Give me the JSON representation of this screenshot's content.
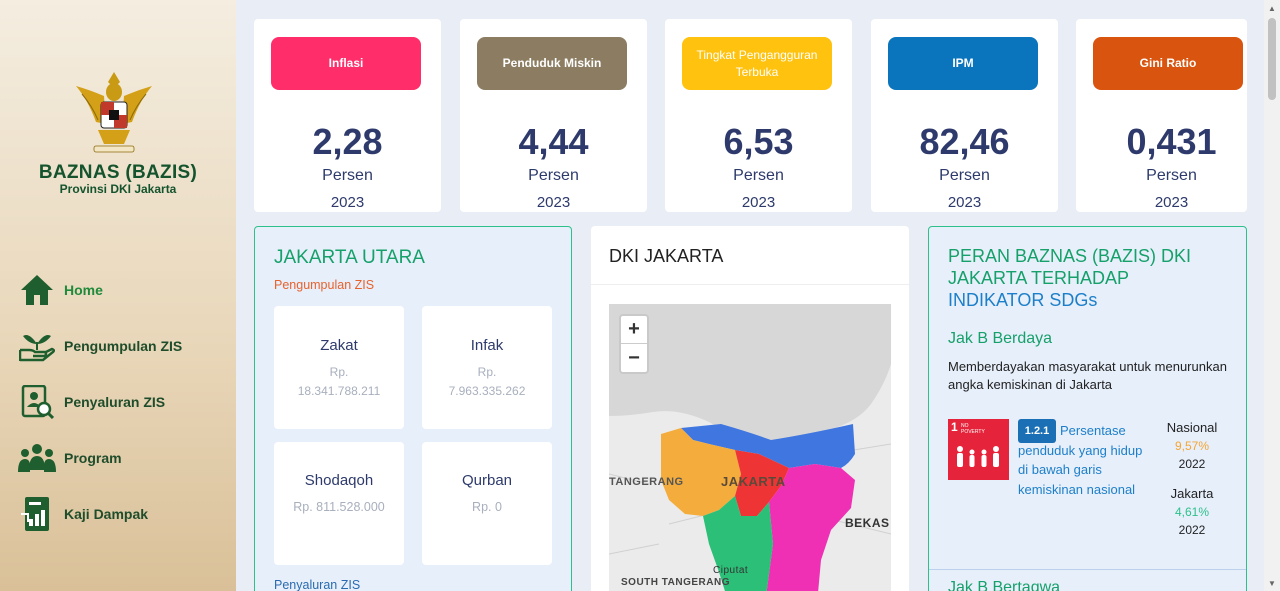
{
  "brand": {
    "name": "BAZNAS (BAZIS)",
    "subtitle": "Provinsi DKI Jakarta"
  },
  "nav": [
    {
      "label": "Home",
      "icon": "home-icon",
      "active": true
    },
    {
      "label": "Pengumpulan ZIS",
      "icon": "hand-plant-icon"
    },
    {
      "label": "Penyaluran ZIS",
      "icon": "document-search-icon"
    },
    {
      "label": "Program",
      "icon": "people-group-icon"
    },
    {
      "label": "Kaji Dampak",
      "icon": "chart-report-icon"
    }
  ],
  "stats": [
    {
      "label": "Inflasi",
      "value": "2,28",
      "unit": "Persen",
      "year": "2023",
      "color": "#ff2d6a"
    },
    {
      "label": "Penduduk Miskin",
      "value": "4,44",
      "unit": "Persen",
      "year": "2023",
      "color": "#8c7d62"
    },
    {
      "label": "Tingkat Pengangguran Terbuka",
      "value": "6,53",
      "unit": "Persen",
      "year": "2023",
      "color": "#ffc20e"
    },
    {
      "label": "IPM",
      "value": "82,46",
      "unit": "Persen",
      "year": "2023",
      "color": "#0a75bc"
    },
    {
      "label": "Gini Ratio",
      "value": "0,431",
      "unit": "Persen",
      "year": "2023",
      "color": "#d9540e"
    }
  ],
  "region": {
    "title": "JAKARTA UTARA",
    "collection_label": "Pengumpulan ZIS",
    "items": [
      {
        "name": "Zakat",
        "currency": "Rp.",
        "amount": "18.341.788.211"
      },
      {
        "name": "Infak",
        "currency": "Rp.",
        "amount": "7.963.335.262"
      },
      {
        "name": "Shodaqoh",
        "amount_full": "Rp. 811.528.000"
      },
      {
        "name": "Qurban",
        "amount_full": "Rp. 0"
      }
    ],
    "distribution_label": "Penyaluran ZIS"
  },
  "map": {
    "title": "DKI JAKARTA",
    "zoom_in": "+",
    "zoom_out": "−",
    "labels": {
      "tangerang": "TANGERANG",
      "jakarta": "JAKARTA",
      "bekasi": "BEKAS",
      "ciputat": "Ciputat",
      "south_tangerang": "SOUTH TANGERANG"
    }
  },
  "sdg": {
    "title_line1": "PERAN BAZNAS (BAZIS) DKI",
    "title_line2": "JAKARTA TERHADAP",
    "title_line3": "INDIKATOR SDGs",
    "section_title": "Jak B Berdaya",
    "description": "Memberdayakan masyarakat untuk menurunkan angka kemiskinan di Jakarta",
    "tile_number": "1",
    "tile_text": "NO POVERTY",
    "indicator_code": "1.2.1",
    "indicator_text": "Persentase penduduk yang hidup di bawah garis kemiskinan nasional",
    "national": {
      "label": "Nasional",
      "value": "9,57%",
      "year": "2022"
    },
    "jakarta": {
      "label": "Jakarta",
      "value": "4,61%",
      "year": "2022"
    },
    "next_section": "Jak B Bertaqwa"
  }
}
